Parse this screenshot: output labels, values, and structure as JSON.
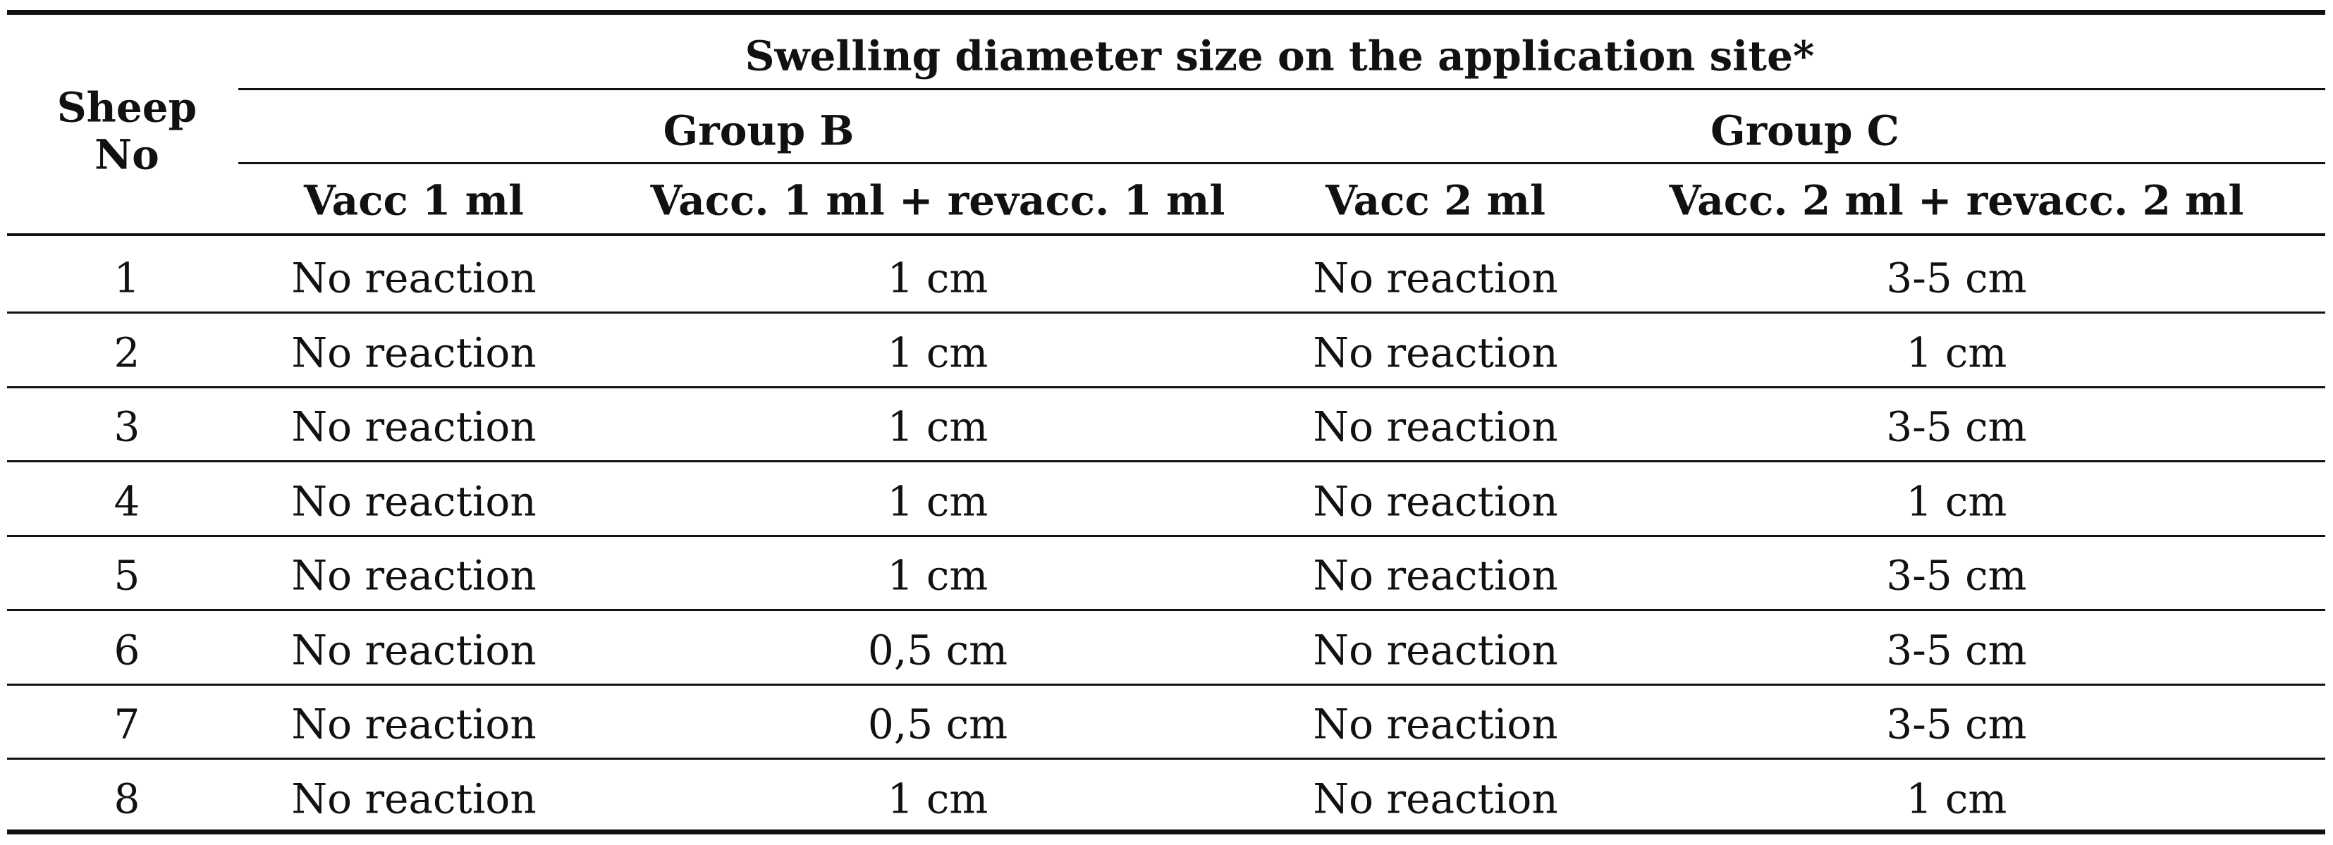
{
  "table": {
    "header": {
      "title": "Swelling diameter size on the application site*",
      "sheep": "Sheep No"
    },
    "groups": [
      "Group B",
      "Group C"
    ],
    "columns": [
      "Vacc 1 ml",
      "Vacc. 1 ml + revacc. 1 ml",
      "Vacc 2 ml",
      "Vacc. 2 ml + revacc.   2 ml"
    ],
    "rows": [
      [
        "1",
        "No reaction",
        "1 cm",
        "No reaction",
        "3-5 cm"
      ],
      [
        "2",
        "No reaction",
        "1 cm",
        "No reaction",
        "1 cm"
      ],
      [
        "3",
        "No reaction",
        "1 cm",
        "No reaction",
        "3-5 cm"
      ],
      [
        "4",
        "No reaction",
        "1 cm",
        "No reaction",
        "1 cm"
      ],
      [
        "5",
        "No reaction",
        "1 cm",
        "No reaction",
        "3-5 cm"
      ],
      [
        "6",
        "No reaction",
        "0,5 cm",
        "No reaction",
        "3-5 cm"
      ],
      [
        "7",
        "No reaction",
        "0,5 cm",
        "No reaction",
        "3-5 cm"
      ],
      [
        "8",
        "No reaction",
        "1 cm",
        "No reaction",
        "1 cm"
      ]
    ]
  }
}
